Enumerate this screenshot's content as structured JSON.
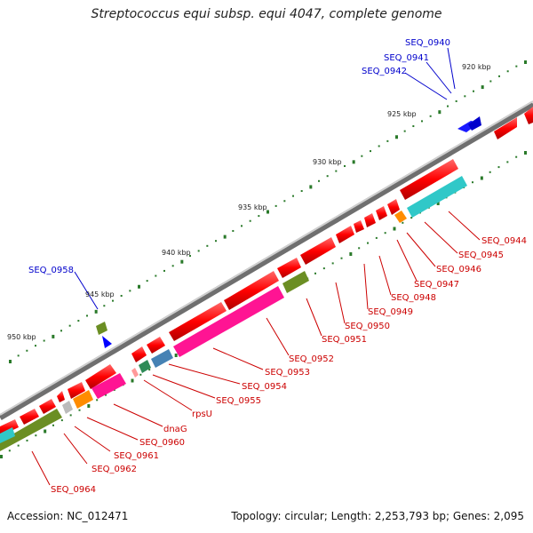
{
  "title": "Streptococcus equi subsp. equi 4047, complete genome",
  "footer": {
    "accession": "Accession: NC_012471",
    "topology": "Topology: circular; Length: 2,253,793 bp; Genes: 2,095"
  },
  "colors": {
    "backbone": "#888888",
    "cds_red": "#ff0000",
    "blue_label": "#0000cc",
    "red_label": "#cc0000",
    "tick_mark": "#2a7a2a"
  },
  "ticks": [
    "920 kbp",
    "925 kbp",
    "930 kbp",
    "935 kbp",
    "940 kbp",
    "945 kbp",
    "950 kbp"
  ],
  "gene_labels": [
    {
      "text": "SEQ_0940",
      "color": "blue"
    },
    {
      "text": "SEQ_0941",
      "color": "blue"
    },
    {
      "text": "SEQ_0942",
      "color": "blue"
    },
    {
      "text": "SEQ_0944",
      "color": "red"
    },
    {
      "text": "SEQ_0945",
      "color": "red"
    },
    {
      "text": "SEQ_0946",
      "color": "red"
    },
    {
      "text": "SEQ_0947",
      "color": "red"
    },
    {
      "text": "SEQ_0948",
      "color": "red"
    },
    {
      "text": "SEQ_0949",
      "color": "red"
    },
    {
      "text": "SEQ_0950",
      "color": "red"
    },
    {
      "text": "SEQ_0951",
      "color": "red"
    },
    {
      "text": "SEQ_0952",
      "color": "red"
    },
    {
      "text": "SEQ_0953",
      "color": "red"
    },
    {
      "text": "SEQ_0954",
      "color": "red"
    },
    {
      "text": "SEQ_0955",
      "color": "red"
    },
    {
      "text": "rpsU",
      "color": "red"
    },
    {
      "text": "dnaG",
      "color": "red"
    },
    {
      "text": "SEQ_0960",
      "color": "red"
    },
    {
      "text": "SEQ_0961",
      "color": "red"
    },
    {
      "text": "SEQ_0962",
      "color": "red"
    },
    {
      "text": "SEQ_0964",
      "color": "red"
    },
    {
      "text": "SEQ_0958",
      "color": "blue"
    }
  ]
}
